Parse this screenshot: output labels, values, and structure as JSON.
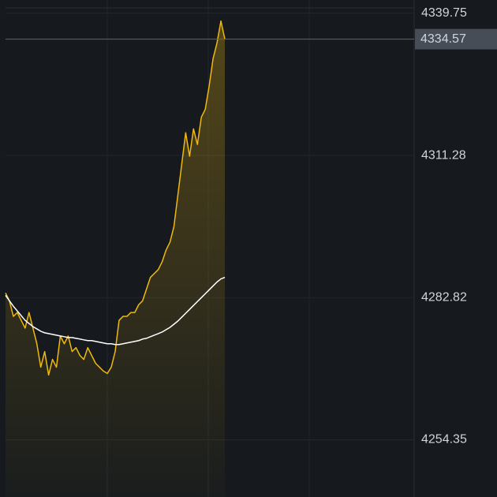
{
  "chart_data": {
    "type": "line",
    "ylim": [
      4242.9,
      4342.4
    ],
    "yticks": [
      4339.75,
      4311.28,
      4282.82,
      4254.35
    ],
    "grid": true,
    "series": [
      {
        "color": "#f0b90b",
        "values": [
          4283.75,
          4282.18,
          4279.06,
          4279.84,
          4278.27,
          4276.71,
          4279.84,
          4276.71,
          4273.58,
          4268.89,
          4272.02,
          4267.32,
          4270.45,
          4268.89,
          4275.14,
          4273.58,
          4275.14,
          4272.02,
          4272.8,
          4271.23,
          4270.45,
          4272.8,
          4271.23,
          4269.67,
          4268.89,
          4268.11,
          4267.64,
          4268.89,
          4272.02,
          4278.27,
          4279.06,
          4279.06,
          4279.84,
          4279.84,
          4281.4,
          4282.18,
          4284.53,
          4286.88,
          4287.66,
          4288.44,
          4290.01,
          4292.35,
          4293.92,
          4297.04,
          4303.3,
          4309.56,
          4315.82,
          4311.12,
          4316.6,
          4313.47,
          4318.94,
          4320.51,
          4325.2,
          4330.68,
          4333.81,
          4338.19,
          4334.57
        ]
      },
      {
        "color": "#ffffff",
        "values": [
          4283.28,
          4282.18,
          4281.09,
          4280.15,
          4279.21,
          4278.27,
          4277.65,
          4277.02,
          4276.55,
          4276.08,
          4275.77,
          4275.61,
          4275.46,
          4275.3,
          4275.14,
          4274.99,
          4274.83,
          4274.83,
          4274.67,
          4274.52,
          4274.36,
          4274.21,
          4274.21,
          4274.05,
          4273.89,
          4273.74,
          4273.58,
          4273.58,
          4273.42,
          4273.42,
          4273.58,
          4273.74,
          4273.89,
          4274.05,
          4274.21,
          4274.52,
          4274.67,
          4274.99,
          4275.3,
          4275.61,
          4275.93,
          4276.4,
          4276.86,
          4277.49,
          4278.12,
          4278.9,
          4279.68,
          4280.46,
          4281.25,
          4282.03,
          4282.81,
          4283.59,
          4284.37,
          4285.16,
          4285.94,
          4286.56,
          4286.88
        ]
      }
    ]
  }
}
